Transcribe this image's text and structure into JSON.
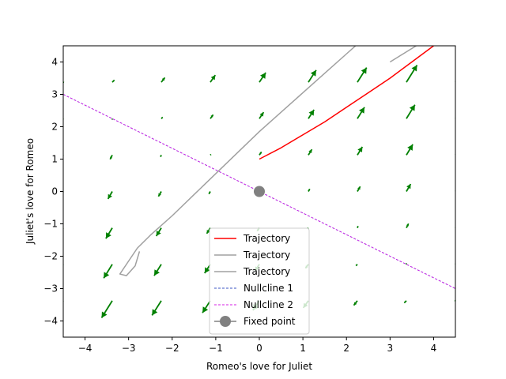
{
  "chart_data": {
    "type": "line",
    "xlabel": "Romeo's love for Juliet",
    "ylabel": "Juliet's love for Romeo",
    "xlim": [
      -4.5,
      4.5
    ],
    "ylim": [
      -4.5,
      4.5
    ],
    "xticks": [
      -4,
      -3,
      -2,
      -1,
      0,
      1,
      2,
      3,
      4
    ],
    "yticks": [
      -4,
      -3,
      -2,
      -1,
      0,
      1,
      2,
      3,
      4
    ],
    "xtick_labels": [
      "−4",
      "−3",
      "−2",
      "−1",
      "0",
      "1",
      "2",
      "3",
      "4"
    ],
    "ytick_labels": [
      "−4",
      "−3",
      "−2",
      "−1",
      "0",
      "1",
      "2",
      "3",
      "4"
    ],
    "grid": false,
    "legend_position": "lower-center",
    "series": [
      {
        "name": "Trajectory",
        "color": "#ff0000",
        "style": "solid",
        "x": [
          0,
          0.5,
          1.0,
          1.5,
          2.0,
          2.5,
          3.0,
          3.5,
          4.0
        ],
        "y": [
          1.0,
          1.35,
          1.75,
          2.15,
          2.6,
          3.05,
          3.5,
          4.0,
          4.5
        ]
      },
      {
        "name": "Trajectory",
        "color": "#a0a0a0",
        "style": "solid",
        "x": [
          -2.75,
          -2.85,
          -3.05,
          -3.2,
          -3.05,
          -2.8,
          -2.5,
          -2.0,
          -1.5,
          -1.0,
          -0.5,
          0.0,
          0.5,
          1.0,
          1.5,
          2.0,
          2.25
        ],
        "y": [
          -1.85,
          -2.3,
          -2.6,
          -2.55,
          -2.25,
          -1.75,
          -1.35,
          -0.75,
          -0.1,
          0.55,
          1.2,
          1.85,
          2.45,
          3.05,
          3.65,
          4.25,
          4.55
        ]
      },
      {
        "name": "Trajectory",
        "color": "#a0a0a0",
        "style": "solid",
        "x": [
          3.0,
          3.3,
          3.6
        ],
        "y": [
          4.0,
          4.25,
          4.5
        ]
      },
      {
        "name": "Nullcline 1",
        "color": "#3b55c4",
        "style": "dashed",
        "x": [
          -4.5,
          4.5
        ],
        "y": [
          3.0,
          -3.0
        ]
      },
      {
        "name": "Nullcline 2",
        "color": "#d41fe6",
        "style": "dashed",
        "x": [
          -4.5,
          4.5
        ],
        "y": [
          3.0,
          -3.0
        ]
      }
    ],
    "fixed_point": {
      "name": "Fixed point",
      "x": 0,
      "y": 0,
      "color": "#808080"
    },
    "vector_field": {
      "color": "#008000",
      "x": [
        -4.5,
        -3.375,
        -2.25,
        -1.125,
        0,
        1.125,
        2.25,
        3.375,
        4.5
      ],
      "y": [
        -4.5,
        -3.375,
        -2.25,
        -1.125,
        0,
        1.125,
        2.25,
        3.375,
        4.5
      ]
    }
  }
}
